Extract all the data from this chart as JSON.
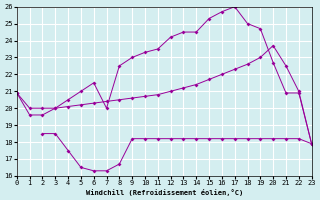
{
  "xlabel": "Windchill (Refroidissement éolien,°C)",
  "bg_color": "#d4eef0",
  "grid_color": "#ffffff",
  "line_color": "#990099",
  "xmin": 0,
  "xmax": 23,
  "ymin": 16,
  "ymax": 26,
  "x_ticks": [
    0,
    1,
    2,
    3,
    4,
    5,
    6,
    7,
    8,
    9,
    10,
    11,
    12,
    13,
    14,
    15,
    16,
    17,
    18,
    19,
    20,
    21,
    22,
    23
  ],
  "y_ticks": [
    16,
    17,
    18,
    19,
    20,
    21,
    22,
    23,
    24,
    25,
    26
  ],
  "line1_x": [
    0,
    1,
    2,
    3,
    4,
    5,
    6,
    7,
    8,
    9,
    10,
    11,
    12,
    13,
    14,
    15,
    16,
    17,
    18,
    19,
    20,
    21,
    22,
    23
  ],
  "line1_y": [
    20.9,
    19.6,
    19.6,
    20.0,
    20.5,
    21.0,
    21.5,
    20.0,
    22.5,
    23.0,
    23.3,
    23.5,
    24.2,
    24.5,
    24.5,
    25.3,
    25.7,
    26.0,
    25.0,
    24.7,
    22.7,
    20.9,
    20.9,
    17.9
  ],
  "line2_x": [
    0,
    1,
    2,
    3,
    4,
    5,
    6,
    7,
    8,
    9,
    10,
    11,
    12,
    13,
    14,
    15,
    16,
    17,
    18,
    19,
    20,
    21,
    22,
    23
  ],
  "line2_y": [
    20.9,
    20.0,
    20.0,
    20.0,
    20.1,
    20.2,
    20.3,
    20.4,
    20.5,
    20.6,
    20.7,
    20.8,
    21.0,
    21.2,
    21.4,
    21.7,
    22.0,
    22.3,
    22.6,
    23.0,
    23.7,
    22.5,
    21.0,
    17.9
  ],
  "line3_x": [
    2,
    3,
    4,
    5,
    6,
    7,
    8,
    9,
    10,
    11,
    12,
    13,
    14,
    15,
    16,
    17,
    18,
    19,
    20,
    21,
    22,
    23
  ],
  "line3_y": [
    18.5,
    18.5,
    17.5,
    16.5,
    16.3,
    16.3,
    16.7,
    18.2,
    18.2,
    18.2,
    18.2,
    18.2,
    18.2,
    18.2,
    18.2,
    18.2,
    18.2,
    18.2,
    18.2,
    18.2,
    18.2,
    17.9
  ]
}
